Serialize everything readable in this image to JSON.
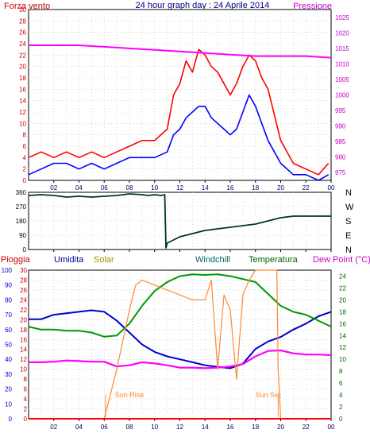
{
  "chart_data": [
    {
      "type": "line",
      "title": "24 hour graph day : 24 Aprile 2014",
      "left_axis_label": "Forza vento",
      "right_axis_label": "Pressione",
      "x_ticks": [
        "02",
        "04",
        "06",
        "08",
        "10",
        "12",
        "14",
        "16",
        "18",
        "20",
        "22",
        "00"
      ],
      "left_ticks": [
        "0",
        "2",
        "4",
        "6",
        "8",
        "10",
        "12",
        "14",
        "16",
        "18",
        "20",
        "22",
        "24",
        "26",
        "28",
        "30"
      ],
      "right_ticks": [
        "975",
        "980",
        "985",
        "990",
        "995",
        "1000",
        "1005",
        "1010",
        "1015",
        "1020",
        "1025"
      ],
      "ylim_left": [
        0,
        30
      ],
      "ylim_right": [
        972.5,
        1027.5
      ],
      "grid": true,
      "colors": {
        "gust": "#ff0000",
        "wind": "#0000ff",
        "pressure": "#ff00ff",
        "left_axis": "#cc0000",
        "right_axis": "#cc00cc",
        "title": "#000080"
      },
      "series": [
        {
          "key": "gust",
          "hours": [
            0,
            1,
            2,
            3,
            4,
            5,
            6,
            7,
            8,
            9,
            10,
            11,
            11.5,
            12,
            12.5,
            13,
            13.5,
            14,
            14.5,
            15,
            15.5,
            16,
            16.5,
            17,
            17.5,
            18,
            18.5,
            19,
            20,
            21,
            22,
            23,
            23.8
          ],
          "values": [
            4,
            5,
            4,
            5,
            4,
            5,
            4,
            5,
            6,
            7,
            7,
            9,
            15,
            17,
            21,
            19,
            23,
            22,
            20,
            19,
            17,
            15,
            17,
            20,
            22,
            21,
            18,
            16,
            7,
            3,
            2,
            1,
            3
          ]
        },
        {
          "key": "wind",
          "hours": [
            0,
            1,
            2,
            3,
            4,
            5,
            6,
            7,
            8,
            9,
            10,
            11,
            11.5,
            12,
            12.5,
            13,
            13.5,
            14,
            14.5,
            15,
            15.5,
            16,
            16.5,
            17,
            17.5,
            18,
            18.5,
            19,
            20,
            21,
            22,
            23,
            23.8
          ],
          "values": [
            1,
            2,
            3,
            3,
            2,
            3,
            2,
            3,
            4,
            4,
            4,
            5,
            8,
            9,
            11,
            12,
            13,
            13,
            11,
            10,
            9,
            8,
            9,
            12,
            15,
            13,
            10,
            7,
            3,
            1,
            1,
            0,
            1
          ]
        },
        {
          "key": "pressure",
          "hours": [
            0,
            2,
            4,
            6,
            8,
            10,
            12,
            14,
            16,
            18,
            20,
            22,
            24
          ],
          "values": [
            1016,
            1016,
            1016,
            1015.5,
            1015,
            1014.5,
            1014,
            1013.5,
            1013,
            1012.5,
            1012.5,
            1012.5,
            1012
          ]
        }
      ]
    },
    {
      "type": "line",
      "ylabel_ticks": [
        "0",
        "90",
        "180",
        "270",
        "360"
      ],
      "compass_labels": [
        "N",
        "W",
        "S",
        "E",
        "N"
      ],
      "ylim": [
        0,
        360
      ],
      "grid": true,
      "colors": {
        "direction": "#003333",
        "axis": "#000000"
      },
      "series": [
        {
          "key": "direction",
          "hours": [
            0,
            1,
            2,
            3,
            4,
            5,
            6,
            7,
            8,
            9,
            9.5,
            10,
            10.5,
            10.8,
            10.9,
            11,
            12,
            13,
            14,
            15,
            16,
            17,
            18,
            19,
            20,
            21,
            22,
            23,
            24
          ],
          "values": [
            340,
            345,
            340,
            330,
            335,
            330,
            335,
            340,
            350,
            345,
            340,
            345,
            340,
            345,
            10,
            40,
            80,
            100,
            120,
            130,
            140,
            150,
            160,
            180,
            200,
            210,
            210,
            210,
            210
          ]
        }
      ]
    },
    {
      "type": "line",
      "legend": [
        "Pioggia",
        "Umidita",
        "Solar",
        "Windchill",
        "Temperatura",
        "Dew Point (°C)"
      ],
      "left_ticks_humidity": [
        "0",
        "10",
        "20",
        "30",
        "40",
        "50",
        "60",
        "70",
        "80",
        "90",
        "100"
      ],
      "left_ticks_rain": [
        "0",
        "2",
        "4",
        "6",
        "8",
        "10",
        "12",
        "14",
        "16",
        "18",
        "20",
        "22",
        "24",
        "26",
        "28",
        "30"
      ],
      "right_ticks": [
        "0",
        "2",
        "4",
        "6",
        "8",
        "10",
        "12",
        "14",
        "16",
        "18",
        "20",
        "22",
        "24"
      ],
      "annotations": [
        "Sun Rise",
        "Sun Set"
      ],
      "ylim_humidity": [
        0,
        100
      ],
      "ylim_rain": [
        0,
        30
      ],
      "ylim_temperature": [
        0,
        25
      ],
      "grid": true,
      "colors": {
        "rain": "#ff0000",
        "humidity": "#0000cc",
        "solar": "#ff8833",
        "windchill": "#006600",
        "temperature": "#009900",
        "dewpoint": "#ff00ff",
        "legend_rain": "#cc0000",
        "legend_humidity": "#000099",
        "legend_solar": "#999900",
        "legend_windchill": "#006666",
        "legend_temperature": "#006600",
        "legend_dewpoint": "#cc00cc",
        "annotation": "#ff8833"
      },
      "series": [
        {
          "key": "humidity",
          "hours": [
            0,
            1,
            2,
            3,
            4,
            5,
            6,
            7,
            8,
            9,
            10,
            11,
            12,
            13,
            14,
            15,
            16,
            17,
            18,
            19,
            20,
            21,
            22,
            23,
            24
          ],
          "values": [
            67,
            67,
            70,
            71,
            72,
            73,
            72,
            66,
            58,
            50,
            45,
            42,
            40,
            38,
            36,
            35,
            34,
            37,
            47,
            52,
            55,
            60,
            64,
            69,
            72
          ]
        },
        {
          "key": "temperature",
          "hours": [
            0,
            1,
            2,
            3,
            4,
            5,
            6,
            7,
            8,
            9,
            10,
            11,
            12,
            13,
            14,
            15,
            16,
            17,
            18,
            19,
            20,
            21,
            22,
            23,
            24
          ],
          "values": [
            15.5,
            15,
            15,
            14.8,
            14.8,
            14.5,
            13.8,
            14,
            16,
            19,
            21.5,
            23,
            24,
            24.3,
            24.2,
            24.3,
            24,
            23.5,
            23,
            21,
            19,
            18,
            17.5,
            16.5,
            15.5
          ]
        },
        {
          "key": "dewpoint",
          "hours": [
            0,
            1,
            2,
            3,
            4,
            5,
            6,
            7,
            8,
            9,
            10,
            11,
            12,
            13,
            14,
            15,
            16,
            17,
            18,
            19,
            20,
            21,
            22,
            23,
            24
          ],
          "values": [
            9.5,
            9.5,
            9.6,
            9.8,
            9.7,
            9.6,
            9.6,
            8.8,
            9,
            9.5,
            9.3,
            9,
            8.6,
            8.6,
            8.5,
            8.6,
            8.8,
            9.2,
            10.5,
            11.4,
            11.5,
            11,
            10.8,
            10.8,
            10.7
          ]
        },
        {
          "key": "solar",
          "hours": [
            0,
            6,
            6.1,
            6.5,
            7,
            8,
            8.5,
            9,
            10,
            11,
            12,
            13,
            14,
            14.5,
            15,
            15.5,
            16,
            16.5,
            17,
            17.5,
            18,
            18.5,
            19,
            19.7,
            19.8,
            20,
            24
          ],
          "values": [
            0,
            0,
            1,
            5,
            10,
            22,
            27,
            28,
            27,
            26,
            25,
            24,
            24,
            28,
            10,
            25,
            22,
            8,
            25,
            28,
            30,
            30,
            30,
            30,
            10,
            0,
            0
          ]
        },
        {
          "key": "rain",
          "hours": [
            0,
            24
          ],
          "values": [
            0,
            0
          ]
        }
      ]
    }
  ]
}
